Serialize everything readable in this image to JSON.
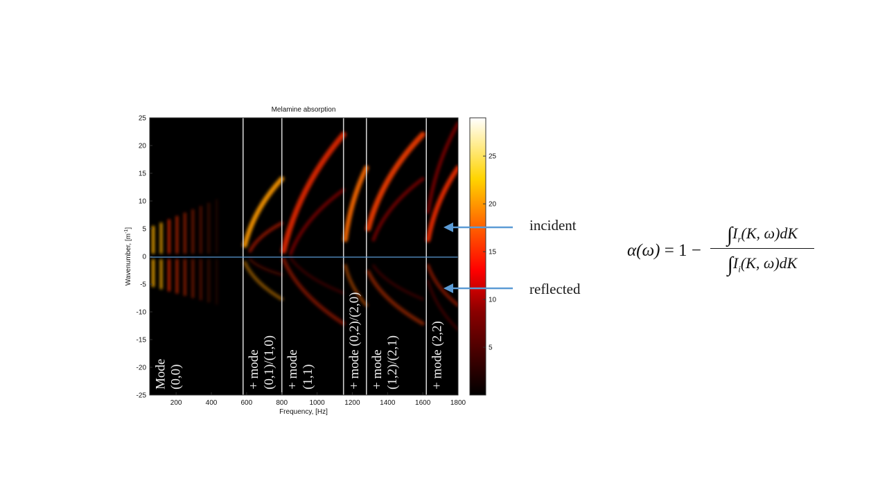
{
  "chart_data": {
    "type": "heatmap",
    "title": "Melamine absorption",
    "xlabel": "Frequency, [Hz]",
    "ylabel": "Wavenumber, [m",
    "ylabel_sup": "-1",
    "ylabel_end": "]",
    "xlim": [
      50,
      1800
    ],
    "ylim": [
      -25,
      25
    ],
    "x_ticks": [
      200,
      400,
      600,
      800,
      1000,
      1200,
      1400,
      1600,
      1800
    ],
    "y_ticks": [
      25,
      20,
      15,
      10,
      5,
      0,
      -5,
      -10,
      -15,
      -20,
      -25
    ],
    "colorbar": {
      "colormap": "hot",
      "range": [
        0,
        29
      ],
      "ticks": [
        25,
        20,
        15,
        10,
        5
      ]
    },
    "mode_boundaries_hz": [
      580,
      800,
      1150,
      1280,
      1620
    ],
    "mode_labels": [
      {
        "x": 55,
        "lines": [
          "Mode",
          "(0,0)"
        ]
      },
      {
        "x": 585,
        "lines": [
          "+ mode",
          "(0,1)/(1,0)"
        ]
      },
      {
        "x": 805,
        "lines": [
          "+ mode",
          "(1,1)"
        ]
      },
      {
        "x": 1155,
        "lines": [
          "+ mode (0,2)/(2,0)"
        ]
      },
      {
        "x": 1285,
        "lines": [
          "+ mode",
          "(1,2)/(2,1)"
        ]
      },
      {
        "x": 1625,
        "lines": [
          "+ mode (2,2)"
        ]
      }
    ]
  },
  "annotations": {
    "incident": "incident",
    "reflected": "reflected",
    "arrow_color": "#5b9bd5"
  },
  "formula": {
    "lhs": "α(ω)",
    "equals": " = 1 − ",
    "numerator": "I",
    "numerator_sub": "r",
    "numerator_rest": "(K, ω)dK",
    "denominator": "I",
    "denominator_sub": "i",
    "denominator_rest": "(K, ω)dK"
  }
}
